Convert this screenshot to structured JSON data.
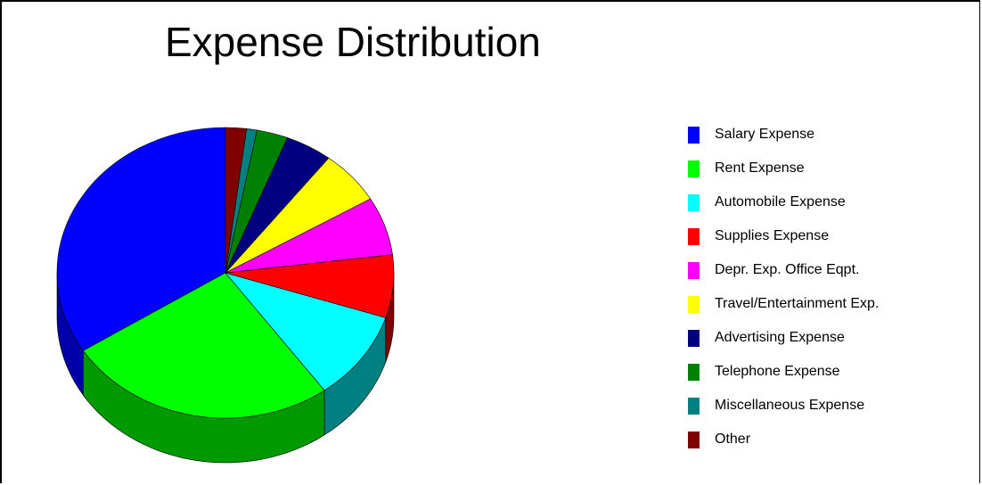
{
  "chart_data": {
    "type": "pie",
    "title": "Expense Distribution",
    "legend_position": "right",
    "style": "3d",
    "slices": [
      {
        "label": "Salary Expense",
        "value": 34,
        "color": "#0000ff",
        "side_color": "#0000a8"
      },
      {
        "label": "Rent Expense",
        "value": 26,
        "color": "#00ff00",
        "side_color": "#009900"
      },
      {
        "label": "Automobile Expense",
        "value": 10,
        "color": "#00ffff",
        "side_color": "#008080"
      },
      {
        "label": "Supplies Expense",
        "value": 7,
        "color": "#ff0000",
        "side_color": "#800000"
      },
      {
        "label": "Depr. Exp. Office Eqpt.",
        "value": 6.5,
        "color": "#ff00ff",
        "side_color": "#800080"
      },
      {
        "label": "Travel/Entertainment Exp.",
        "value": 6,
        "color": "#ffff00",
        "side_color": "#808000"
      },
      {
        "label": "Advertising Expense",
        "value": 4.5,
        "color": "#000080",
        "side_color": "#000040"
      },
      {
        "label": "Telephone Expense",
        "value": 3,
        "color": "#008000",
        "side_color": "#004000"
      },
      {
        "label": "Miscellaneous Expense",
        "value": 1,
        "color": "#008080",
        "side_color": "#004040"
      },
      {
        "label": "Other",
        "value": 2,
        "color": "#800000",
        "side_color": "#400000"
      }
    ]
  }
}
